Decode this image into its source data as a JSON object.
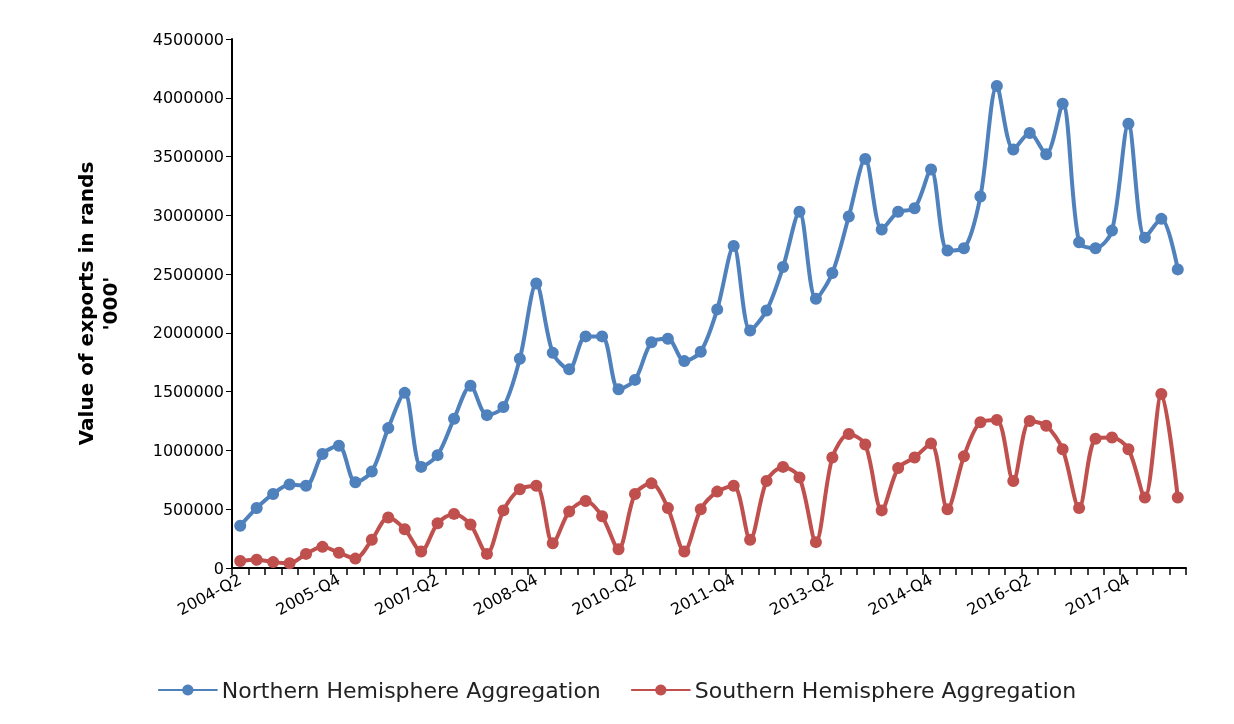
{
  "chart_data": {
    "type": "line",
    "ylabel": "Value of exports in rands\n'000'",
    "categories": [
      "2004-Q2",
      null,
      null,
      null,
      null,
      null,
      "2005-Q4",
      null,
      null,
      null,
      null,
      null,
      "2007-Q2",
      null,
      null,
      null,
      null,
      null,
      "2008-Q4",
      null,
      null,
      null,
      null,
      null,
      "2010-Q2",
      null,
      null,
      null,
      null,
      null,
      "2011-Q4",
      null,
      null,
      null,
      null,
      null,
      "2013-Q2",
      null,
      null,
      null,
      null,
      null,
      "2014-Q4",
      null,
      null,
      null,
      null,
      null,
      "2016-Q2",
      null,
      null,
      null,
      null,
      null,
      "2017-Q4",
      null,
      null,
      null
    ],
    "series": [
      {
        "name": "Northern Hemisphere Aggregation",
        "color": "#4f81bd",
        "values": [
          360000,
          510000,
          630000,
          710000,
          700000,
          970000,
          1040000,
          730000,
          820000,
          1190000,
          1490000,
          860000,
          960000,
          1270000,
          1550000,
          1300000,
          1370000,
          1780000,
          2420000,
          1830000,
          1690000,
          1970000,
          1970000,
          1520000,
          1600000,
          1920000,
          1950000,
          1760000,
          1840000,
          2200000,
          2740000,
          2020000,
          2190000,
          2560000,
          3030000,
          2290000,
          2510000,
          2990000,
          3480000,
          2880000,
          3030000,
          3060000,
          3390000,
          2700000,
          2720000,
          3160000,
          4100000,
          3560000,
          3700000,
          3520000,
          3950000,
          2770000,
          2720000,
          2870000,
          3780000,
          2810000,
          2970000,
          2540000
        ]
      },
      {
        "name": "Southern Hemisphere Aggregation",
        "color": "#c0504d",
        "values": [
          60000,
          70000,
          50000,
          40000,
          120000,
          180000,
          130000,
          80000,
          240000,
          430000,
          330000,
          140000,
          380000,
          460000,
          370000,
          120000,
          490000,
          670000,
          700000,
          210000,
          480000,
          570000,
          440000,
          160000,
          630000,
          720000,
          510000,
          140000,
          500000,
          650000,
          700000,
          240000,
          740000,
          860000,
          770000,
          220000,
          940000,
          1140000,
          1050000,
          490000,
          850000,
          940000,
          1060000,
          500000,
          950000,
          1240000,
          1260000,
          740000,
          1250000,
          1210000,
          1010000,
          510000,
          1100000,
          1110000,
          1010000,
          600000,
          1480000,
          600000
        ]
      }
    ],
    "ylim": [
      0,
      4500000
    ],
    "yticks": [
      0,
      500000,
      1000000,
      1500000,
      2000000,
      2500000,
      3000000,
      3500000,
      4000000,
      4500000
    ],
    "grid": false,
    "legend": "bottom",
    "marker": "circle",
    "line_style": "solid"
  }
}
